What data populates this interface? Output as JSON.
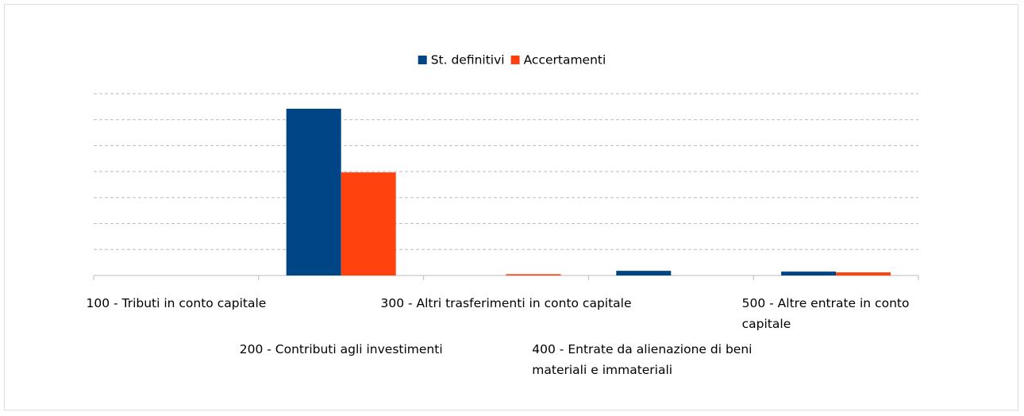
{
  "chart_data": {
    "type": "bar",
    "categories": [
      "100 - Tributi in conto capitale",
      "200 - Contributi agli investimenti",
      "300 - Altri trasferimenti in conto capitale",
      "400 - Entrate da alienazione di beni materiali e immateriali",
      "500 - Altre entrate in conto capitale"
    ],
    "series": [
      {
        "name": "St. definitivi",
        "color": "#004586",
        "values": [
          0,
          6.42,
          0,
          0.18,
          0.15
        ]
      },
      {
        "name": "Accertamenti",
        "color": "#ff420e",
        "values": [
          0,
          3.97,
          0.05,
          0,
          0.12
        ]
      }
    ],
    "ylim": [
      0,
      7
    ],
    "yticks": [
      0,
      1,
      2,
      3,
      4,
      5,
      6,
      7
    ],
    "grid": true,
    "legend": "top"
  }
}
